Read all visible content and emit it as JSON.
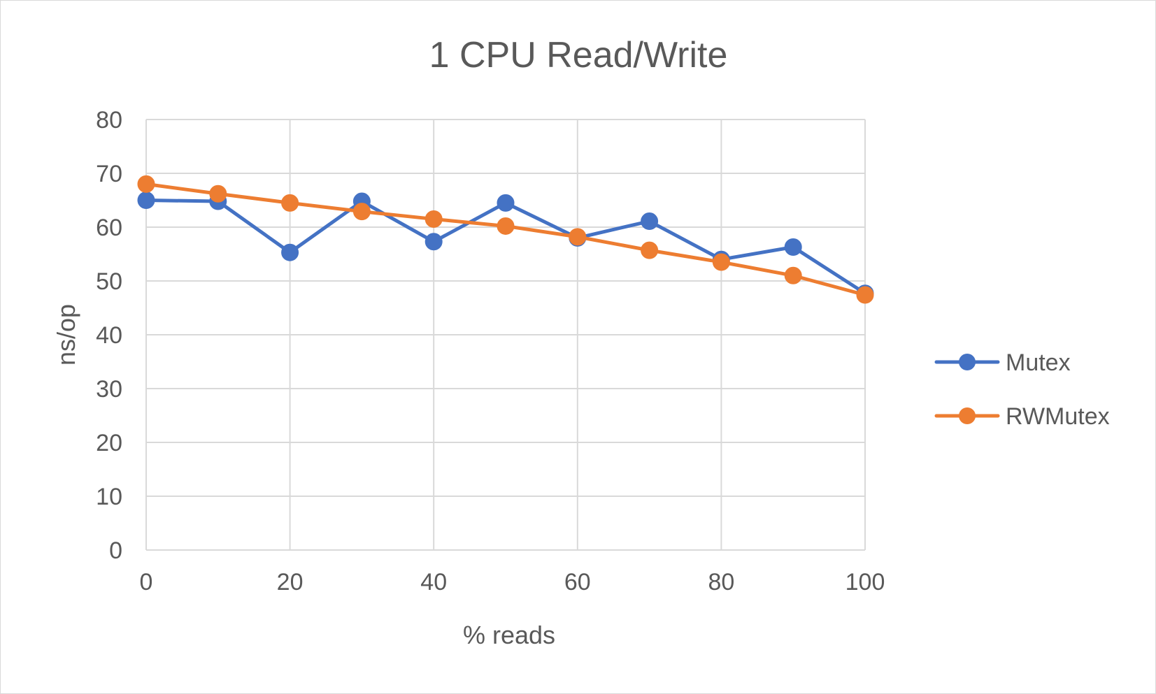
{
  "chart_data": {
    "type": "line",
    "title": "1 CPU Read/Write",
    "xlabel": "% reads",
    "ylabel": "ns/op",
    "x": [
      0,
      10,
      20,
      30,
      40,
      50,
      60,
      70,
      80,
      90,
      100
    ],
    "xticks": [
      "0",
      "20",
      "40",
      "60",
      "80",
      "100"
    ],
    "yticks": [
      "0",
      "10",
      "20",
      "30",
      "40",
      "50",
      "60",
      "70",
      "80"
    ],
    "xlim": [
      0,
      100
    ],
    "ylim": [
      0,
      80
    ],
    "grid": true,
    "legend_position": "right",
    "series": [
      {
        "name": "Mutex",
        "color": "#4472c4",
        "values": [
          65.0,
          64.8,
          55.3,
          64.8,
          57.3,
          64.5,
          58.0,
          61.1,
          54.0,
          56.3,
          47.7
        ]
      },
      {
        "name": "RWMutex",
        "color": "#ed7d31",
        "values": [
          68.0,
          66.2,
          64.5,
          62.9,
          61.5,
          60.2,
          58.2,
          55.7,
          53.5,
          51.0,
          47.4
        ]
      }
    ]
  }
}
